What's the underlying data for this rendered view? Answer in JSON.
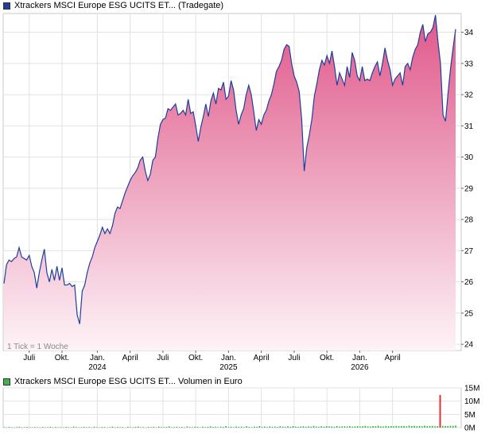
{
  "legend": {
    "price_label": "Xtrackers MSCI Europe ESG UCITS ET... (Tradegate)",
    "price_swatch_color": "#1f3f9a",
    "volume_label": "Xtrackers MSCI Europe ESG UCITS ET... Volumen in Euro",
    "volume_swatch_color": "#3cb44b"
  },
  "chart_data": [
    {
      "type": "area",
      "title": "",
      "note": "1 Tick = 1 Woche",
      "line_color": "#1f3f9a",
      "fill_top_color": "#e0588a",
      "fill_bottom_color": "#fdf3f7",
      "grid": true,
      "y_axis_side": "right",
      "ylim": [
        23.8,
        34.6
      ],
      "y_ticks": [
        24,
        25,
        26,
        27,
        28,
        29,
        30,
        31,
        32,
        33,
        34
      ],
      "x_ticks": [
        {
          "label": "Juli",
          "label2": "",
          "week": 10
        },
        {
          "label": "Okt.",
          "label2": "",
          "week": 23
        },
        {
          "label": "Jan.",
          "label2": "2024",
          "week": 37
        },
        {
          "label": "April",
          "label2": "",
          "week": 50
        },
        {
          "label": "Juli",
          "label2": "",
          "week": 63
        },
        {
          "label": "Okt.",
          "label2": "",
          "week": 76
        },
        {
          "label": "Jan.",
          "label2": "2025",
          "week": 89
        },
        {
          "label": "April",
          "label2": "",
          "week": 102
        },
        {
          "label": "Juli",
          "label2": "",
          "week": 115
        },
        {
          "label": "Okt.",
          "label2": "",
          "week": 128
        },
        {
          "label": "Jan.",
          "label2": "2026",
          "week": 141
        },
        {
          "label": "April",
          "label2": "",
          "week": 154
        }
      ],
      "values": [
        25.95,
        26.55,
        26.7,
        26.65,
        26.75,
        26.8,
        27.1,
        26.8,
        26.75,
        26.7,
        26.85,
        26.5,
        26.3,
        25.8,
        26.3,
        26.7,
        27.05,
        26.3,
        26.0,
        26.4,
        26.05,
        26.5,
        26.05,
        26.45,
        25.9,
        25.9,
        25.95,
        25.85,
        25.9,
        24.95,
        24.65,
        25.7,
        25.9,
        26.3,
        26.6,
        26.8,
        27.1,
        27.3,
        27.5,
        27.75,
        27.55,
        27.7,
        27.55,
        27.8,
        28.2,
        28.4,
        28.35,
        28.6,
        28.85,
        29.05,
        29.25,
        29.4,
        29.5,
        29.65,
        29.9,
        30.0,
        29.55,
        29.25,
        29.45,
        29.9,
        30.0,
        30.6,
        31.05,
        31.2,
        31.25,
        31.55,
        31.5,
        31.6,
        31.7,
        31.35,
        31.4,
        31.5,
        31.35,
        31.85,
        31.4,
        31.45,
        31.0,
        30.5,
        30.95,
        31.3,
        31.7,
        31.3,
        31.8,
        32.05,
        31.7,
        32.2,
        32.15,
        32.4,
        31.85,
        31.95,
        32.45,
        32.15,
        31.5,
        31.05,
        31.35,
        31.55,
        32.0,
        32.3,
        32.0,
        31.45,
        30.85,
        31.2,
        31.05,
        31.35,
        31.5,
        31.8,
        32.0,
        32.35,
        32.75,
        32.9,
        33.1,
        33.45,
        33.6,
        33.55,
        33.0,
        32.6,
        32.4,
        32.1,
        31.2,
        29.55,
        30.3,
        30.7,
        31.2,
        31.95,
        32.35,
        32.8,
        33.1,
        32.95,
        33.25,
        33.0,
        33.4,
        32.9,
        32.3,
        32.7,
        32.5,
        32.3,
        32.9,
        32.55,
        33.35,
        33.1,
        32.6,
        32.45,
        32.9,
        32.45,
        32.5,
        32.45,
        32.7,
        32.9,
        33.05,
        32.6,
        33.0,
        33.5,
        33.1,
        32.8,
        32.3,
        32.5,
        32.6,
        32.7,
        32.3,
        32.9,
        33.0,
        32.8,
        33.2,
        33.45,
        33.6,
        34.0,
        34.25,
        33.7,
        33.95,
        34.0,
        34.15,
        34.55,
        33.7,
        33.0,
        31.35,
        31.15,
        32.05,
        32.85,
        33.5,
        34.1
      ]
    },
    {
      "type": "bar",
      "title": "",
      "bar_color": "#3cb44b",
      "spike_color": "#e03030",
      "grid": true,
      "y_axis_side": "right",
      "ylim": [
        0,
        15
      ],
      "y_ticks": [
        {
          "value": 0,
          "label": "0M"
        },
        {
          "value": 5,
          "label": "5M"
        },
        {
          "value": 10,
          "label": "10M"
        },
        {
          "value": 15,
          "label": "15M"
        }
      ],
      "y_unit": "Mio. Euro",
      "values": [
        0.2,
        0.1,
        0.3,
        0.15,
        0.1,
        0.25,
        0.35,
        0.1,
        0.2,
        0.3,
        0.1,
        0.15,
        0.25,
        0.2,
        0.1,
        0.3,
        0.15,
        0.2,
        0.35,
        0.1,
        0.25,
        0.15,
        0.2,
        0.1,
        0.3,
        0.2,
        0.15,
        0.4,
        0.25,
        0.1,
        0.2,
        0.3,
        0.15,
        0.25,
        0.1,
        0.35,
        0.2,
        0.15,
        0.3,
        0.25,
        0.1,
        0.2,
        0.4,
        0.15,
        0.3,
        0.2,
        0.25,
        0.1,
        0.35,
        0.2,
        0.15,
        0.3,
        0.45,
        0.2,
        0.25,
        0.1,
        0.3,
        0.2,
        0.35,
        0.15,
        0.4,
        0.25,
        0.2,
        0.3,
        0.5,
        0.15,
        0.25,
        0.35,
        0.2,
        0.3,
        0.1,
        0.45,
        0.25,
        0.2,
        0.35,
        0.3,
        0.15,
        0.4,
        0.2,
        0.3,
        0.5,
        0.25,
        0.35,
        0.2,
        0.4,
        0.3,
        0.6,
        0.25,
        0.35,
        0.2,
        0.45,
        0.3,
        0.4,
        0.25,
        0.55,
        0.3,
        0.2,
        0.4,
        0.35,
        0.6,
        0.3,
        0.45,
        0.25,
        0.5,
        0.35,
        0.4,
        0.3,
        0.55,
        0.45,
        0.3,
        0.5,
        0.35,
        0.6,
        0.4,
        0.3,
        0.45,
        0.55,
        0.35,
        0.5,
        0.4,
        0.7,
        0.45,
        0.35,
        0.55,
        0.4,
        0.6,
        0.5,
        0.45,
        0.35,
        0.6,
        0.4,
        0.5,
        0.55,
        0.45,
        0.65,
        0.4,
        0.5,
        0.6,
        0.45,
        0.55,
        0.7,
        0.5,
        0.4,
        0.6,
        0.55,
        0.75,
        0.5,
        0.45,
        0.65,
        0.55,
        0.6,
        0.5,
        0.7,
        0.55,
        0.6,
        0.65,
        0.5,
        0.8,
        0.6,
        0.7,
        0.55,
        0.65,
        0.5,
        0.75,
        0.6,
        0.65,
        0.7,
        0.55,
        0.6,
        12.3,
        0.7,
        0.65,
        0.6,
        0.75,
        0.7,
        0.8
      ]
    }
  ]
}
